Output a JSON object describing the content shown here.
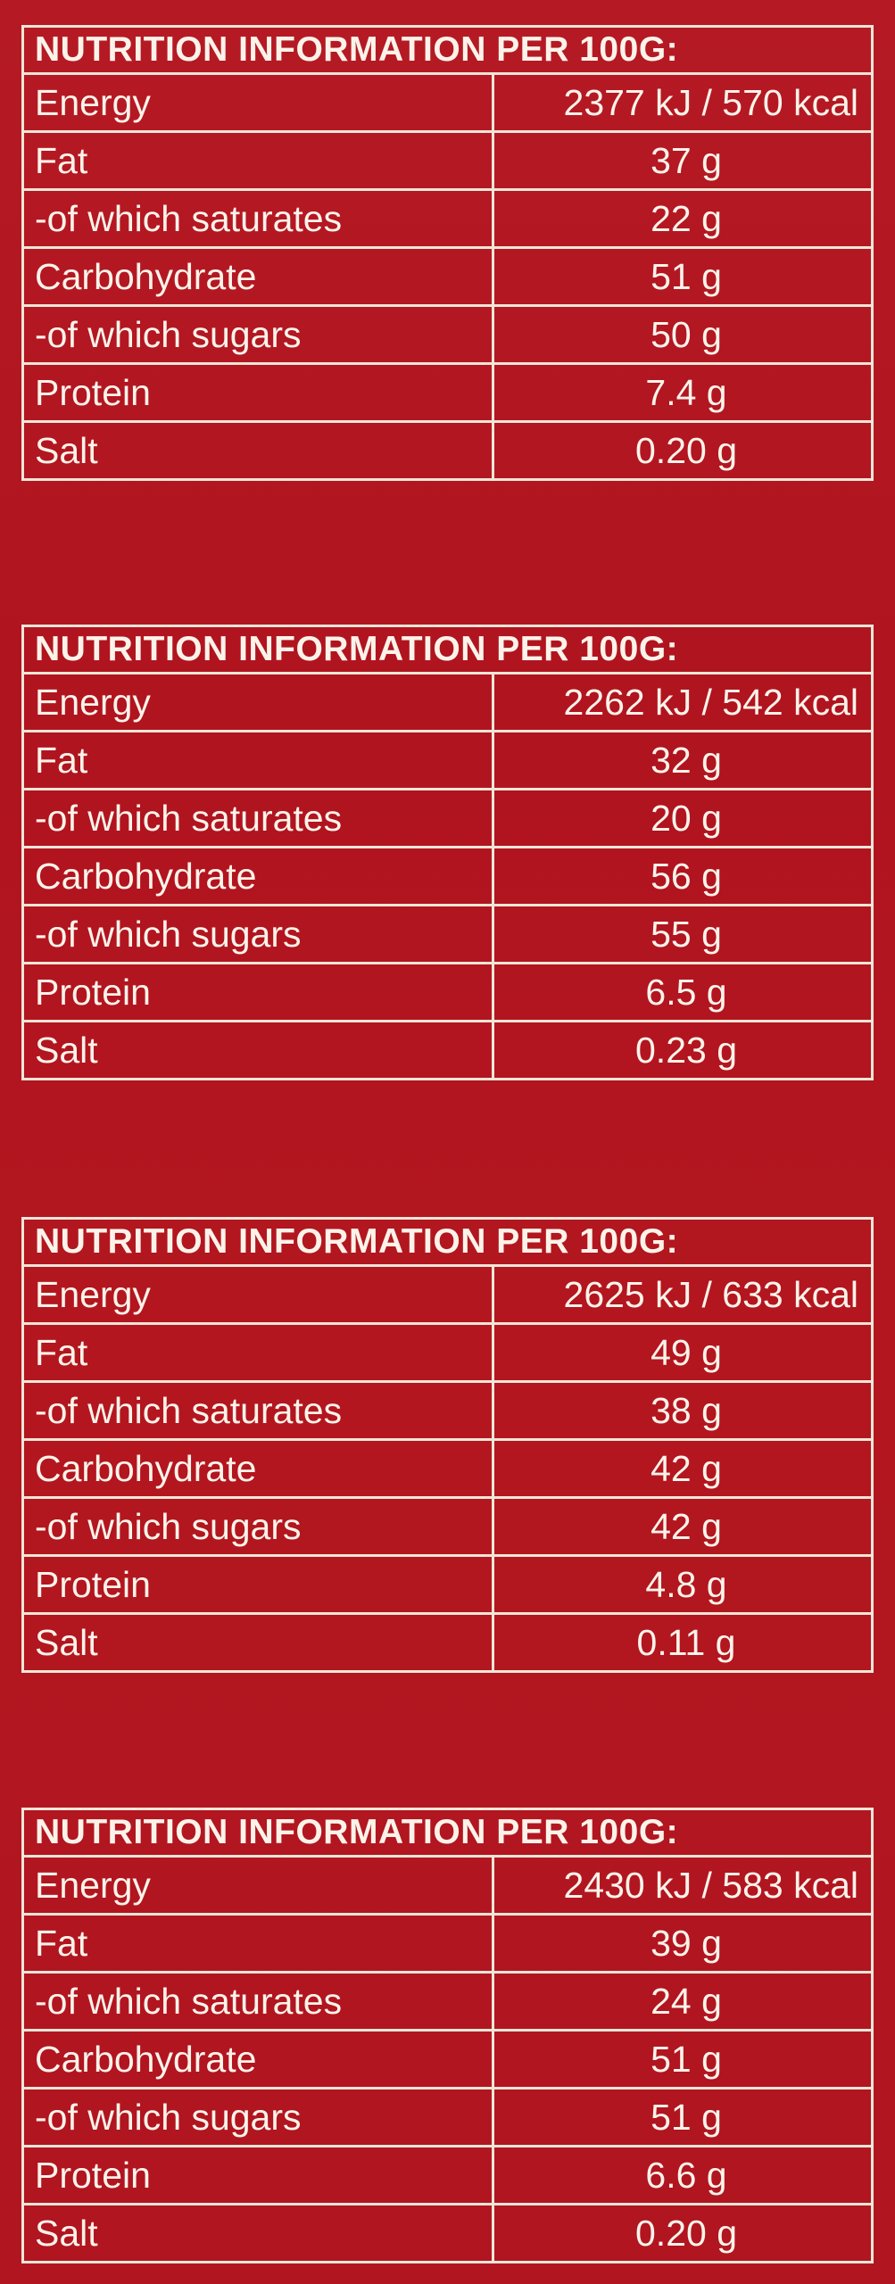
{
  "panels": [
    {
      "header": "NUTRITION INFORMATION PER 100G:",
      "rows": [
        {
          "label": "Energy",
          "value": "2377 kJ / 570 kcal"
        },
        {
          "label": "Fat",
          "value": "37 g"
        },
        {
          "label": "-of which saturates",
          "value": "22 g"
        },
        {
          "label": "Carbohydrate",
          "value": "51 g"
        },
        {
          "label": "-of which sugars",
          "value": "50 g"
        },
        {
          "label": "Protein",
          "value": "7.4 g"
        },
        {
          "label": "Salt",
          "value": "0.20 g"
        }
      ]
    },
    {
      "header": "NUTRITION INFORMATION PER 100G:",
      "rows": [
        {
          "label": "Energy",
          "value": "2262 kJ / 542 kcal"
        },
        {
          "label": "Fat",
          "value": "32 g"
        },
        {
          "label": "-of which saturates",
          "value": "20 g"
        },
        {
          "label": "Carbohydrate",
          "value": "56 g"
        },
        {
          "label": "-of which sugars",
          "value": "55 g"
        },
        {
          "label": "Protein",
          "value": "6.5 g"
        },
        {
          "label": "Salt",
          "value": "0.23 g"
        }
      ]
    },
    {
      "header": "NUTRITION INFORMATION PER 100G:",
      "rows": [
        {
          "label": "Energy",
          "value": "2625 kJ / 633 kcal"
        },
        {
          "label": "Fat",
          "value": "49 g"
        },
        {
          "label": "-of which saturates",
          "value": "38 g"
        },
        {
          "label": "Carbohydrate",
          "value": "42 g"
        },
        {
          "label": "-of which sugars",
          "value": "42 g"
        },
        {
          "label": "Protein",
          "value": "4.8 g"
        },
        {
          "label": "Salt",
          "value": "0.11 g"
        }
      ]
    },
    {
      "header": "NUTRITION INFORMATION PER 100G:",
      "rows": [
        {
          "label": "Energy",
          "value": "2430 kJ / 583 kcal"
        },
        {
          "label": "Fat",
          "value": "39 g"
        },
        {
          "label": "-of which saturates",
          "value": "24 g"
        },
        {
          "label": "Carbohydrate",
          "value": "51 g"
        },
        {
          "label": "-of which sugars",
          "value": "51 g"
        },
        {
          "label": "Protein",
          "value": "6.6 g"
        },
        {
          "label": "Salt",
          "value": "0.20 g"
        }
      ]
    }
  ],
  "colors": {
    "background": "#b3161f",
    "text_and_rules": "#fbf3ea"
  }
}
